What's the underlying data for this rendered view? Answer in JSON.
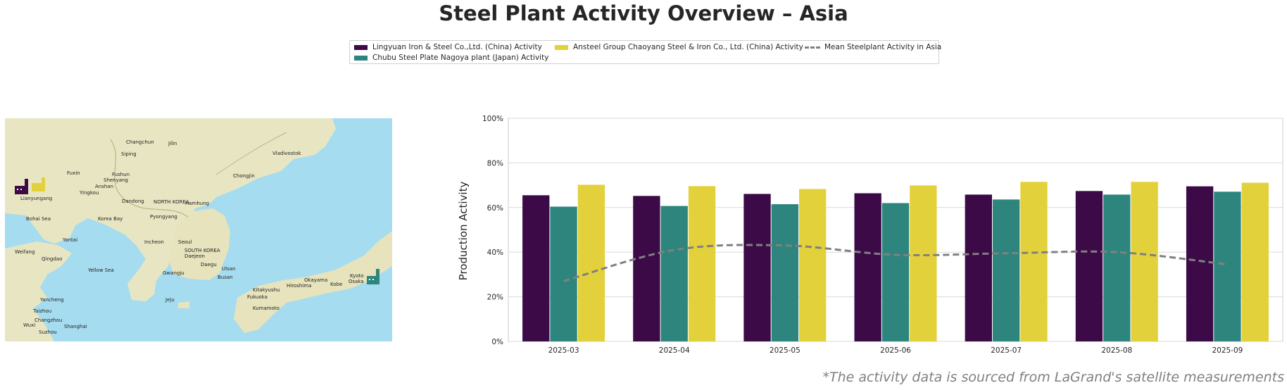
{
  "title": "Steel Plant Activity Overview – Asia",
  "footnote": "*The activity data is sourced from LaGrand's satellite measurements",
  "legend": [
    {
      "label": "Lingyuan Iron & Steel Co.,Ltd. (China) Activity",
      "color": "#3b0a47"
    },
    {
      "label": "Chubu Steel Plate Nagoya plant (Japan) Activity",
      "color": "#2e857e"
    },
    {
      "label": "Ansteel Group Chaoyang Steel & Iron Co., Ltd. (China) Activity",
      "color": "#e3d13b"
    },
    {
      "label": "Mean Steelplant Activity in Asia",
      "color": "#808080"
    }
  ],
  "map": {
    "labels": [
      {
        "text": "Changchun"
      },
      {
        "text": "Jilin"
      },
      {
        "text": "Siping"
      },
      {
        "text": "Fuxin"
      },
      {
        "text": "Fushun"
      },
      {
        "text": "Shenyang"
      },
      {
        "text": "Anshan"
      },
      {
        "text": "Yingkou"
      },
      {
        "text": "Dandong"
      },
      {
        "text": "NORTH KOREA"
      },
      {
        "text": "Hamhung"
      },
      {
        "text": "Pyongyang"
      },
      {
        "text": "Chongjin"
      },
      {
        "text": "Vladivostok"
      },
      {
        "text": "Incheon"
      },
      {
        "text": "Seoul"
      },
      {
        "text": "SOUTH KOREA"
      },
      {
        "text": "Daejeon"
      },
      {
        "text": "Daegu"
      },
      {
        "text": "Gwangju"
      },
      {
        "text": "Ulsan"
      },
      {
        "text": "Busan"
      },
      {
        "text": "Kitakyushu"
      },
      {
        "text": "Fukuoka"
      },
      {
        "text": "Hiroshima"
      },
      {
        "text": "Okayama"
      },
      {
        "text": "Kyoto"
      },
      {
        "text": "Osaka"
      },
      {
        "text": "Kobe"
      },
      {
        "text": "Kumamoto"
      },
      {
        "text": "Yantai"
      },
      {
        "text": "Weifang"
      },
      {
        "text": "Qingdao"
      },
      {
        "text": "Yellow Sea"
      },
      {
        "text": "Korea Bay"
      },
      {
        "text": "Bohai Sea"
      },
      {
        "text": "Shanghai"
      },
      {
        "text": "Taizhou"
      },
      {
        "text": "Changzhou"
      },
      {
        "text": "Wuxi"
      },
      {
        "text": "Suzhou"
      },
      {
        "text": "Yancheng"
      },
      {
        "text": "Lianyungang"
      },
      {
        "text": "Jeju"
      }
    ]
  },
  "chart_data": {
    "type": "bar",
    "categories": [
      "2025-03",
      "2025-04",
      "2025-05",
      "2025-06",
      "2025-07",
      "2025-08",
      "2025-09"
    ],
    "series": [
      {
        "name": "Lingyuan Iron & Steel Co.,Ltd. (China) Activity",
        "color": "#3b0a47",
        "values": [
          65.5,
          65.2,
          66.1,
          66.4,
          65.8,
          67.4,
          69.5
        ]
      },
      {
        "name": "Chubu Steel Plate Nagoya plant (Japan) Activity",
        "color": "#2e857e",
        "values": [
          60.4,
          60.7,
          61.5,
          62.0,
          63.6,
          65.8,
          67.1
        ]
      },
      {
        "name": "Ansteel Group Chaoyang Steel & Iron Co., Ltd. (China) Activity",
        "color": "#e3d13b",
        "values": [
          70.2,
          69.6,
          68.3,
          69.9,
          71.5,
          71.5,
          71.1
        ]
      }
    ],
    "line": {
      "name": "Mean Steelplant Activity in Asia",
      "color": "#808080",
      "values": [
        27.0,
        41.0,
        43.0,
        38.8,
        39.5,
        40.0,
        34.5
      ]
    },
    "ylabel": "Production Activity",
    "ylim": [
      0,
      100
    ],
    "yticks": [
      "0%",
      "20%",
      "40%",
      "60%",
      "80%",
      "100%"
    ],
    "grid": true,
    "legend_position": "top-center"
  }
}
